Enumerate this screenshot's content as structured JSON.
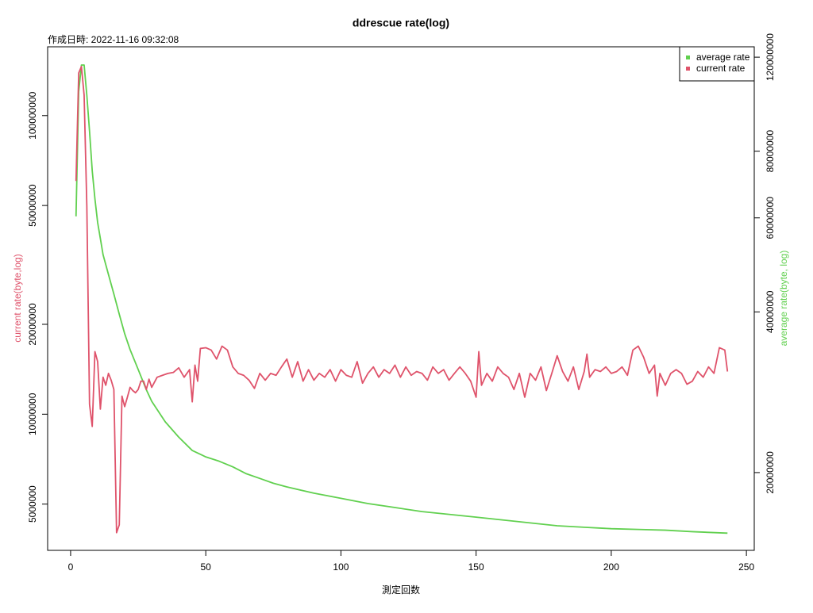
{
  "chart_data": {
    "type": "line",
    "title": "ddrescue rate(log)",
    "subtitle": "作成日時: 2022-11-16 09:32:08",
    "xlabel": "測定回数",
    "ylabel": "current rate(byte,log)",
    "y2label": "average rate(byte, log)",
    "xlim": [
      -8.5,
      252.9
    ],
    "xticks": [
      0,
      50,
      100,
      150,
      200,
      250
    ],
    "ylim": [
      3500000,
      170000000
    ],
    "yticks": [
      5000000,
      10000000,
      20000000,
      50000000,
      100000000
    ],
    "ylog": true,
    "y2lim": [
      14300000,
      125500000
    ],
    "y2ticks": [
      20000000,
      40000000,
      60000000,
      80000000,
      120000000
    ],
    "y2log": true,
    "legend": "topright",
    "series": [
      {
        "name": "average rate",
        "color": "#61D04F",
        "axis": "y2",
        "x": [
          2,
          3,
          4,
          5,
          6,
          7,
          8,
          9,
          10,
          11,
          12,
          14,
          16,
          18,
          20,
          22,
          25,
          28,
          30,
          35,
          40,
          45,
          50,
          55,
          60,
          65,
          70,
          75,
          80,
          90,
          100,
          110,
          120,
          130,
          140,
          150,
          160,
          170,
          180,
          190,
          200,
          210,
          220,
          230,
          243
        ],
        "values": [
          60400000,
          103500000,
          116000000,
          116000000,
          101800000,
          87200000,
          73500000,
          65100000,
          58800000,
          54900000,
          51200000,
          47000000,
          43200000,
          39600000,
          36400000,
          34000000,
          31200000,
          28600000,
          27200000,
          24900000,
          23300000,
          22000000,
          21400000,
          21000000,
          20500000,
          19900000,
          19500000,
          19100000,
          18800000,
          18300000,
          17900000,
          17500000,
          17200000,
          16900000,
          16700000,
          16500000,
          16300000,
          16100000,
          15900000,
          15800000,
          15700000,
          15650000,
          15600000,
          15500000,
          15400000
        ]
      },
      {
        "name": "current rate",
        "color": "#DF536B",
        "axis": "y",
        "x": [
          2,
          3,
          4,
          5,
          6,
          7,
          8,
          9,
          10,
          11,
          12,
          13,
          14,
          15,
          16,
          17,
          18,
          19,
          20,
          21,
          22,
          23,
          24,
          25,
          26,
          27,
          28,
          29,
          30,
          32,
          34,
          36,
          38,
          40,
          42,
          44,
          45,
          46,
          47,
          48,
          50,
          52,
          54,
          56,
          58,
          60,
          62,
          64,
          66,
          68,
          70,
          72,
          74,
          76,
          78,
          80,
          82,
          84,
          86,
          88,
          90,
          92,
          94,
          96,
          98,
          100,
          102,
          104,
          106,
          108,
          110,
          112,
          114,
          116,
          118,
          120,
          122,
          124,
          126,
          128,
          130,
          132,
          134,
          136,
          138,
          140,
          142,
          144,
          146,
          148,
          150,
          151,
          152,
          154,
          156,
          158,
          160,
          162,
          164,
          166,
          168,
          170,
          172,
          174,
          176,
          178,
          180,
          182,
          184,
          186,
          188,
          190,
          191,
          192,
          194,
          196,
          198,
          200,
          202,
          204,
          206,
          208,
          210,
          212,
          214,
          216,
          217,
          218,
          220,
          222,
          224,
          226,
          228,
          230,
          232,
          234,
          236,
          238,
          240,
          242,
          243
        ],
        "values": [
          60400000,
          139000000,
          146000000,
          117000000,
          49700000,
          10800000,
          9100000,
          16200000,
          15000000,
          10400000,
          13300000,
          12500000,
          13700000,
          13000000,
          12100000,
          4010000,
          4260000,
          11500000,
          10600000,
          11400000,
          12300000,
          12000000,
          11800000,
          12100000,
          12900000,
          12900000,
          12100000,
          13100000,
          12300000,
          13300000,
          13500000,
          13700000,
          13800000,
          14300000,
          13300000,
          14100000,
          11000000,
          14600000,
          12900000,
          16600000,
          16700000,
          16400000,
          15300000,
          16900000,
          16400000,
          14400000,
          13700000,
          13500000,
          13000000,
          12200000,
          13700000,
          13000000,
          13700000,
          13500000,
          14400000,
          15300000,
          13300000,
          15000000,
          12900000,
          14100000,
          13000000,
          13700000,
          13300000,
          14100000,
          12900000,
          14100000,
          13500000,
          13300000,
          15000000,
          12700000,
          13700000,
          14400000,
          13300000,
          14100000,
          13700000,
          14600000,
          13300000,
          14400000,
          13500000,
          13900000,
          13700000,
          13000000,
          14400000,
          13700000,
          14100000,
          13000000,
          13700000,
          14400000,
          13700000,
          12900000,
          11400000,
          16200000,
          12500000,
          13700000,
          12900000,
          14400000,
          13700000,
          13300000,
          12100000,
          13700000,
          11400000,
          13700000,
          13000000,
          14400000,
          12000000,
          13700000,
          15700000,
          13900000,
          12900000,
          14400000,
          12100000,
          13900000,
          15900000,
          13300000,
          14100000,
          13900000,
          14400000,
          13700000,
          13900000,
          14400000,
          13500000,
          16400000,
          16900000,
          15500000,
          13700000,
          14600000,
          11500000,
          13700000,
          12500000,
          13700000,
          14100000,
          13700000,
          12600000,
          12900000,
          13900000,
          13300000,
          14400000,
          13700000,
          16700000,
          16400000,
          13900000
        ]
      }
    ]
  }
}
